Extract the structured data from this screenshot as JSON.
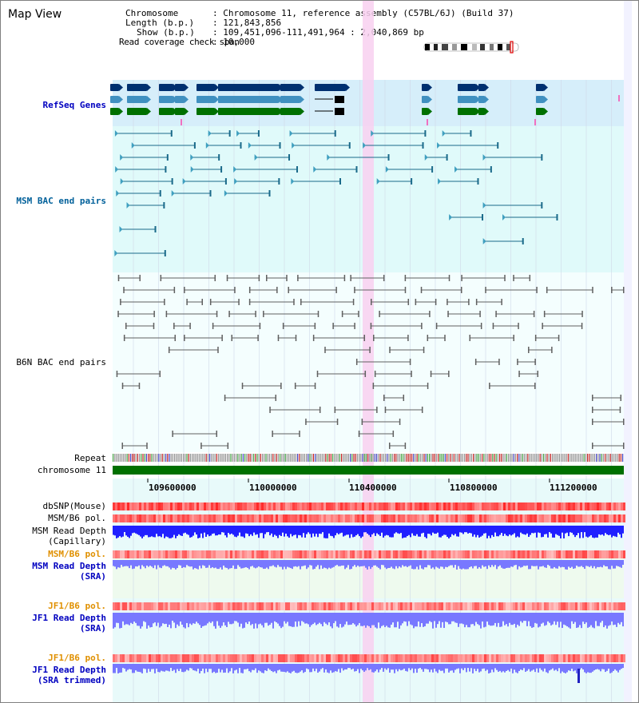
{
  "title": "Map View",
  "info": {
    "chromosome_key": "Chromosome",
    "chromosome_val": ": Chromosome 11, reference assembly (C57BL/6J) (Build 37)",
    "length_key": "Length (b.p.)",
    "length_val": ": 121,843,856",
    "show_key": "Show (b.p.)",
    "show_val": ": 109,451,096-111,491,964 : 2,040,869 bp",
    "coverage_key": "Read coverage check span",
    "coverage_val": ": 10,000"
  },
  "tracks": {
    "refseq": "RefSeq Genes",
    "msm_bac": "MSM BAC end pairs",
    "b6n_bac": "B6N BAC end pairs",
    "repeat": "Repeat",
    "chromosome": "chromosome 11",
    "dbsnp": "dbSNP(Mouse)",
    "msm_b6_pol_1": "MSM/B6 pol.",
    "msm_read_depth_cap_1": "MSM Read Depth",
    "msm_read_depth_cap_2": "(Capillary)",
    "msm_b6_pol_2": "MSM/B6 pol.",
    "msm_read_depth_sra_1": "MSM Read Depth",
    "msm_read_depth_sra_2": "(SRA)",
    "jf1_b6_pol_1": "JF1/B6 pol.",
    "jf1_read_depth_sra_1": "JF1 Read Depth",
    "jf1_read_depth_sra_2": "(SRA)",
    "jf1_b6_pol_2": "JF1/B6 pol.",
    "jf1_read_depth_trim_1": "JF1 Read Depth",
    "jf1_read_depth_trim_2": "(SRA trimmed)"
  },
  "axis_ticks": [
    "109600000",
    "110000000",
    "110400000",
    "110800000",
    "111200000"
  ],
  "colors": {
    "refseq_bg": "#d6eefa",
    "bac_bg": "#e0fafa",
    "highlight": "#f8d0f0",
    "label_blue": "#0000c0",
    "label_orange": "#e09000",
    "chrom_green": "#007000",
    "depth_blue": "#2020ff",
    "depth_light": "#7878ff"
  }
}
